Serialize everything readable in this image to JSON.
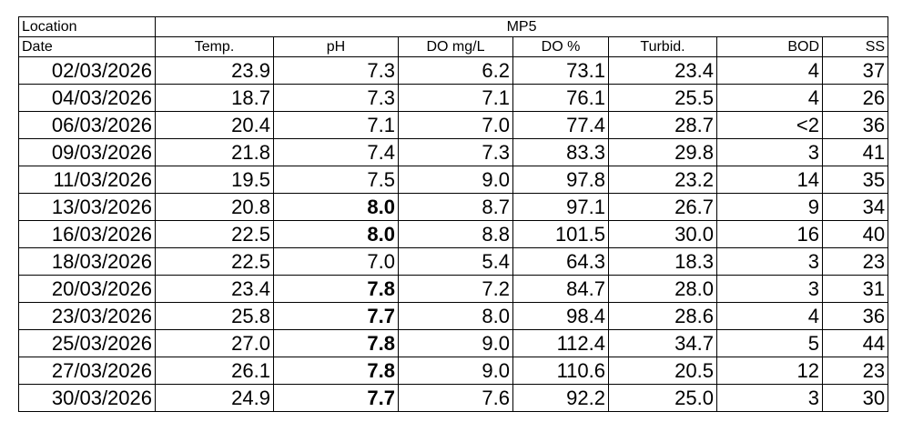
{
  "table": {
    "location_label": "Location",
    "location": "MP5",
    "columns": [
      "Date",
      "Temp.",
      "pH",
      "DO mg/L",
      "DO %",
      "Turbid.",
      "BOD",
      "SS"
    ],
    "rows": [
      [
        "02/03/2026",
        "23.9",
        "7.3",
        "6.2",
        "73.1",
        "23.4",
        "4",
        "37"
      ],
      [
        "04/03/2026",
        "18.7",
        "7.3",
        "7.1",
        "76.1",
        "25.5",
        "4",
        "26"
      ],
      [
        "06/03/2026",
        "20.4",
        "7.1",
        "7.0",
        "77.4",
        "28.7",
        "<2",
        "36"
      ],
      [
        "09/03/2026",
        "21.8",
        "7.4",
        "7.3",
        "83.3",
        "29.8",
        "3",
        "41"
      ],
      [
        "11/03/2026",
        "19.5",
        "7.5",
        "9.0",
        "97.8",
        "23.2",
        "14",
        "35"
      ],
      [
        "13/03/2026",
        "20.8",
        {
          "text": "8.0",
          "bold": true
        },
        "8.7",
        "97.1",
        "26.7",
        "9",
        "34"
      ],
      [
        "16/03/2026",
        "22.5",
        {
          "text": "8.0",
          "bold": true
        },
        "8.8",
        "101.5",
        "30.0",
        "16",
        "40"
      ],
      [
        "18/03/2026",
        "22.5",
        "7.0",
        "5.4",
        "64.3",
        "18.3",
        "3",
        "23"
      ],
      [
        "20/03/2026",
        "23.4",
        {
          "text": "7.8",
          "bold": true
        },
        "7.2",
        "84.7",
        "28.0",
        "3",
        "31"
      ],
      [
        "23/03/2026",
        "25.8",
        {
          "text": "7.7",
          "bold": true
        },
        "8.0",
        "98.4",
        "28.6",
        "4",
        "36"
      ],
      [
        "25/03/2026",
        "27.0",
        {
          "text": "7.8",
          "bold": true
        },
        "9.0",
        "112.4",
        "34.7",
        "5",
        "44"
      ],
      [
        "27/03/2026",
        "26.1",
        {
          "text": "7.8",
          "bold": true
        },
        "9.0",
        "110.6",
        "20.5",
        "12",
        "23"
      ],
      [
        "30/03/2026",
        "24.9",
        {
          "text": "7.7",
          "bold": true
        },
        "7.6",
        "92.2",
        "25.0",
        "3",
        "30"
      ]
    ]
  }
}
